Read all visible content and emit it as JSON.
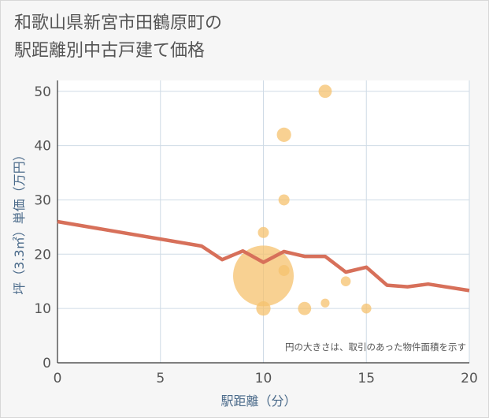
{
  "title": {
    "line1": "和歌山県新宮市田鶴原町の",
    "line2": "駅距離別中古戸建て価格"
  },
  "colors": {
    "background": "#f6f6f6",
    "plot_bg": "#ffffff",
    "grid": "#cfdbe6",
    "line": "#d7705a",
    "bubble": "#f5c26e",
    "text": "#555555",
    "axis_label": "#4a6a8a"
  },
  "chart_data": {
    "type": "scatter",
    "xlabel": "駅距離（分）",
    "ylabel": "坪（3.3㎡）単価（万円）",
    "xlim": [
      0,
      20
    ],
    "ylim": [
      0,
      52
    ],
    "x_ticks": [
      "0",
      "5",
      "10",
      "15",
      "20"
    ],
    "y_ticks": [
      "0",
      "10",
      "20",
      "30",
      "40",
      "50"
    ],
    "x_tick_values": [
      0,
      5,
      10,
      15,
      20
    ],
    "y_tick_values": [
      0,
      10,
      20,
      30,
      40,
      50
    ],
    "annotation": "円の大きさは、取引のあった物件面積を示す",
    "bubbles": [
      {
        "x": 10,
        "y": 16,
        "size": 5.5
      },
      {
        "x": 10,
        "y": 10,
        "size": 1.3
      },
      {
        "x": 10,
        "y": 24,
        "size": 1.0
      },
      {
        "x": 11,
        "y": 42,
        "size": 1.3
      },
      {
        "x": 11,
        "y": 30,
        "size": 1.0
      },
      {
        "x": 11,
        "y": 17,
        "size": 1.0
      },
      {
        "x": 12,
        "y": 10,
        "size": 1.2
      },
      {
        "x": 13,
        "y": 50,
        "size": 1.2
      },
      {
        "x": 13,
        "y": 11,
        "size": 0.8
      },
      {
        "x": 14,
        "y": 15,
        "size": 0.9
      },
      {
        "x": 15,
        "y": 10,
        "size": 0.9
      }
    ],
    "trend_line": {
      "x": [
        0,
        7,
        8,
        9,
        10,
        11,
        12,
        13,
        14,
        15,
        16,
        17,
        18,
        20
      ],
      "y": [
        26,
        21.5,
        19,
        20.6,
        18.5,
        20.5,
        19.6,
        19.6,
        16.7,
        17.6,
        14.3,
        14,
        14.5,
        13.3
      ]
    }
  }
}
